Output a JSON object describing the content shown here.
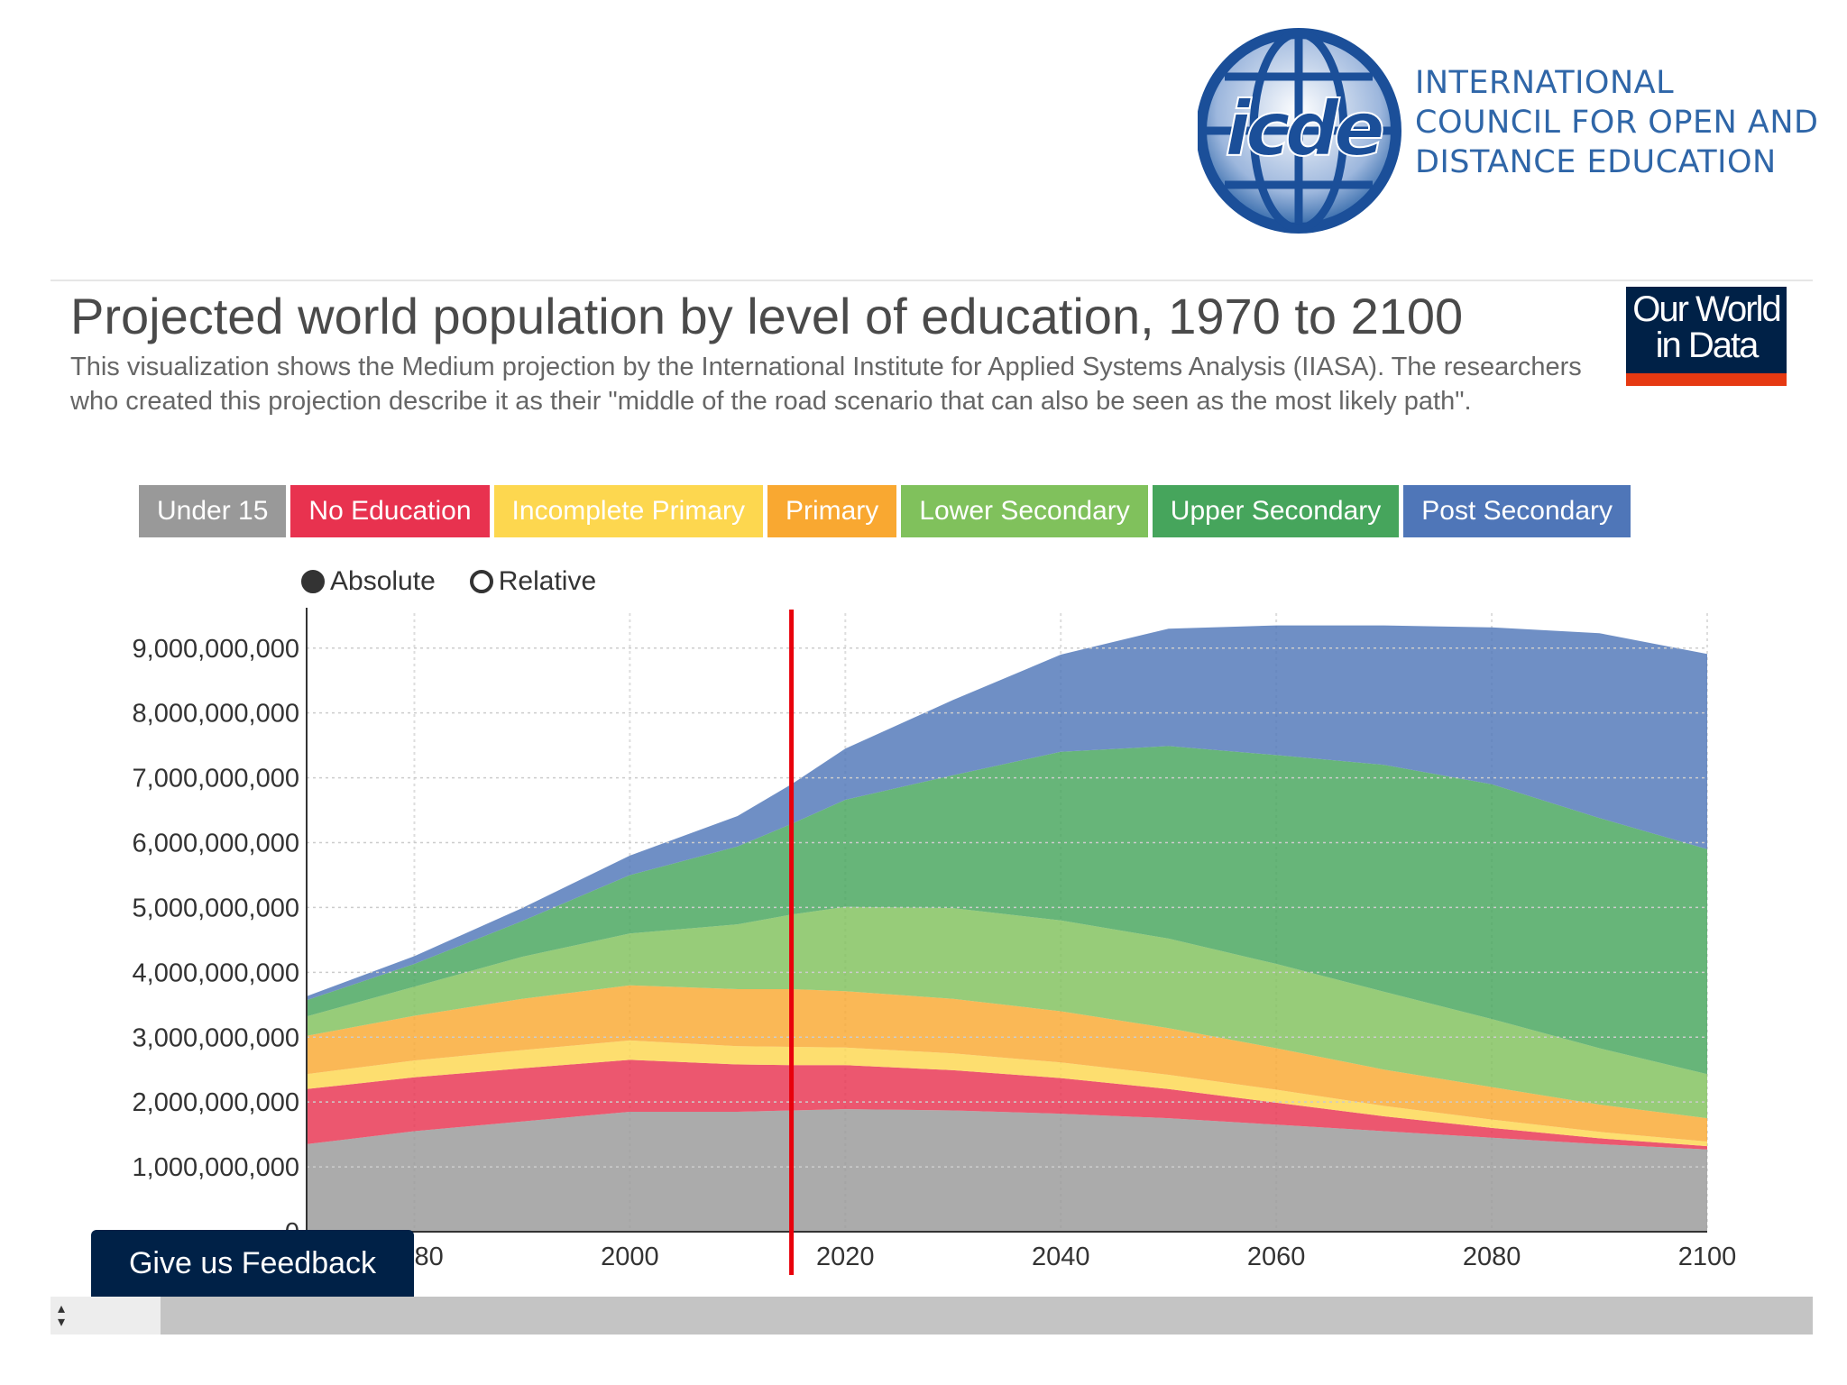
{
  "org_logo": {
    "mark_text": "icde",
    "name_lines": [
      "INTERNATIONAL",
      "COUNCIL FOR OPEN AND",
      "DISTANCE EDUCATION"
    ],
    "brand_color": "#2f66a8"
  },
  "header": {
    "title": "Projected world population by level of education, 1970 to 2100",
    "subtitle": "This visualization shows the Medium projection by the International Institute for Applied Systems Analysis (IIASA). The researchers who created this projection describe it as their \"middle of the road scenario that can also be seen as the most likely path\"."
  },
  "owid_logo": {
    "line1": "Our World",
    "line2": "in Data",
    "bg_color": "#002147",
    "bar_color": "#e63912"
  },
  "mode_toggle": {
    "absolute_label": "Absolute",
    "relative_label": "Relative",
    "selected": "absolute"
  },
  "feedback_button": {
    "label": "Give us Feedback"
  },
  "chart_data": {
    "type": "area",
    "stacked": true,
    "title": "Projected world population by level of education, 1970 to 2100",
    "x": [
      1970,
      1980,
      1990,
      2000,
      2010,
      2015,
      2020,
      2030,
      2040,
      2050,
      2060,
      2070,
      2080,
      2090,
      2100
    ],
    "x_ticks": [
      "1980",
      "2000",
      "2020",
      "2040",
      "2060",
      "2080",
      "2100"
    ],
    "x_tick_values": [
      1980,
      2000,
      2020,
      2040,
      2060,
      2080,
      2100
    ],
    "y_ticks": [
      "0",
      "1,000,000,000",
      "2,000,000,000",
      "3,000,000,000",
      "4,000,000,000",
      "5,000,000,000",
      "6,000,000,000",
      "7,000,000,000",
      "8,000,000,000",
      "9,000,000,000"
    ],
    "ylim": [
      0,
      9400000000
    ],
    "xlim": [
      1970,
      2100
    ],
    "marker_year": 2015,
    "marker_color": "#e8000b",
    "grid": true,
    "legend_position": "top",
    "series": [
      {
        "name": "Under 15",
        "color": "#999999",
        "values": [
          1350000000,
          1550000000,
          1700000000,
          1850000000,
          1850000000,
          1870000000,
          1890000000,
          1870000000,
          1820000000,
          1750000000,
          1650000000,
          1550000000,
          1450000000,
          1350000000,
          1270000000
        ]
      },
      {
        "name": "No Education",
        "color": "#e8324f",
        "values": [
          850000000,
          830000000,
          820000000,
          800000000,
          730000000,
          700000000,
          680000000,
          620000000,
          550000000,
          450000000,
          340000000,
          230000000,
          150000000,
          90000000,
          50000000
        ]
      },
      {
        "name": "Incomplete Primary",
        "color": "#fdd74f",
        "values": [
          230000000,
          260000000,
          280000000,
          300000000,
          280000000,
          280000000,
          270000000,
          260000000,
          240000000,
          220000000,
          200000000,
          160000000,
          130000000,
          100000000,
          70000000
        ]
      },
      {
        "name": "Primary",
        "color": "#f9a831",
        "values": [
          590000000,
          690000000,
          790000000,
          850000000,
          880000000,
          890000000,
          870000000,
          840000000,
          790000000,
          720000000,
          640000000,
          560000000,
          500000000,
          420000000,
          360000000
        ]
      },
      {
        "name": "Lower Secondary",
        "color": "#80c15c",
        "values": [
          300000000,
          450000000,
          650000000,
          800000000,
          1000000000,
          1150000000,
          1300000000,
          1400000000,
          1400000000,
          1380000000,
          1300000000,
          1200000000,
          1050000000,
          870000000,
          680000000
        ]
      },
      {
        "name": "Upper Secondary",
        "color": "#46a55c",
        "values": [
          250000000,
          350000000,
          550000000,
          900000000,
          1200000000,
          1400000000,
          1650000000,
          2050000000,
          2600000000,
          2970000000,
          3220000000,
          3500000000,
          3620000000,
          3550000000,
          3470000000
        ]
      },
      {
        "name": "Post Secondary",
        "color": "#4f76b8",
        "values": [
          60000000,
          120000000,
          200000000,
          300000000,
          470000000,
          610000000,
          790000000,
          1160000000,
          1500000000,
          1810000000,
          2000000000,
          2150000000,
          2420000000,
          2850000000,
          3010000000
        ]
      }
    ]
  }
}
